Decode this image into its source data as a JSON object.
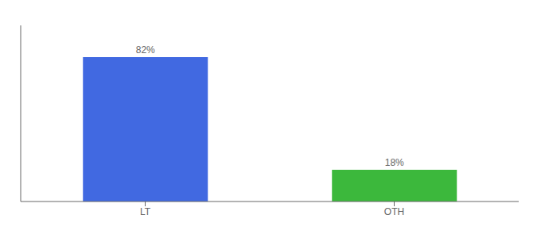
{
  "chart_data": {
    "type": "bar",
    "categories": [
      "LT",
      "OTH"
    ],
    "values": [
      82,
      18
    ],
    "colors": [
      "#4169e1",
      "#3cb83c"
    ],
    "ylim": [
      0,
      100
    ],
    "data_labels": true,
    "value_labels": [
      "82%",
      "18%"
    ],
    "tick_labels": "x"
  }
}
